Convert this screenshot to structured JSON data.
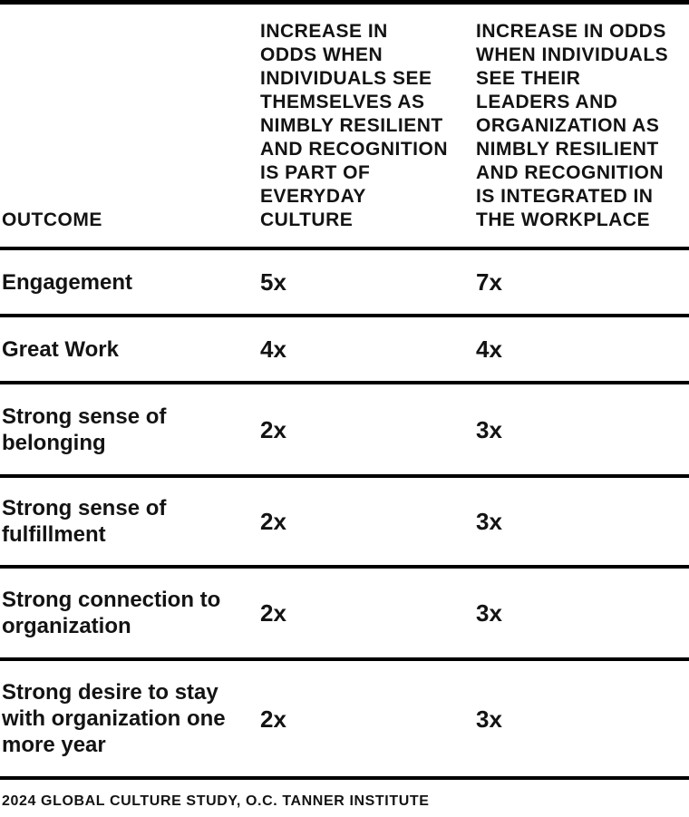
{
  "chart_data": {
    "type": "table",
    "title": "",
    "columns": [
      {
        "id": "outcome",
        "label": "OUTCOME"
      },
      {
        "id": "self_resilient_odds",
        "label": "INCREASE IN\nODDS WHEN\nINDIVIDUALS SEE\nTHEMSELVES AS\nNIMBLY RESILIENT\nAND RECOGNITION\nIS PART OF\nEVERYDAY\nCULTURE"
      },
      {
        "id": "leader_org_resilient_odds",
        "label": "INCREASE IN ODDS\nWHEN INDIVIDUALS\nSEE THEIR\nLEADERS AND\nORGANIZATION AS\nNIMBLY RESILIENT\nAND RECOGNITION\nIS INTEGRATED IN\nTHE WORKPLACE"
      }
    ],
    "rows": [
      {
        "outcome": "Engagement",
        "values": [
          "5x",
          "7x"
        ]
      },
      {
        "outcome": "Great Work",
        "values": [
          "4x",
          "4x"
        ]
      },
      {
        "outcome": "Strong sense of\nbelonging",
        "values": [
          "2x",
          "3x"
        ]
      },
      {
        "outcome": "Strong sense of\nfulfillment",
        "values": [
          "2x",
          "3x"
        ]
      },
      {
        "outcome": "Strong connection to\norganization",
        "values": [
          "2x",
          "3x"
        ]
      },
      {
        "outcome": "Strong desire to stay\nwith organization one\nmore year",
        "values": [
          "2x",
          "3x"
        ]
      }
    ],
    "source": "2024 GLOBAL CULTURE STUDY, O.C. TANNER INSTITUTE"
  },
  "colors": {
    "text": "#131313",
    "rule_lines": "#000000",
    "background": "#ffffff"
  }
}
